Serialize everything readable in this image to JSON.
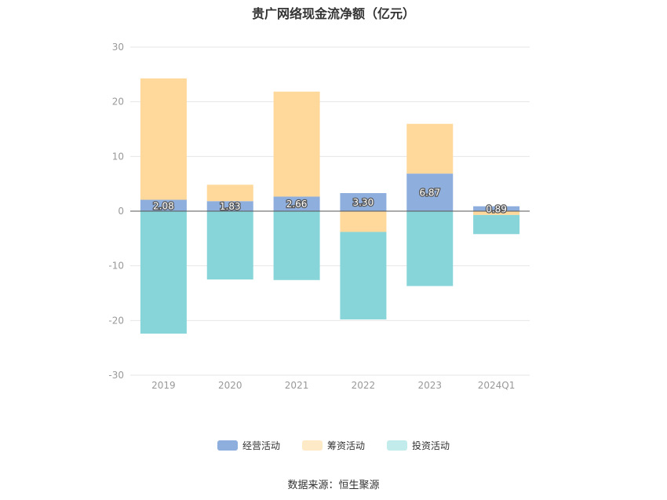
{
  "title": "贵广网络现金流净额（亿元）",
  "source": "数据来源：恒生聚源",
  "chart_data": {
    "type": "bar",
    "stacked": true,
    "title": "贵广网络现金流净额（亿元）",
    "xlabel": "",
    "ylabel": "",
    "categories": [
      "2019",
      "2020",
      "2021",
      "2022",
      "2023",
      "2024Q1"
    ],
    "ylim": [
      -30,
      30
    ],
    "yticks": [
      30,
      20,
      10,
      0,
      -10,
      -20,
      -30
    ],
    "grid": true,
    "legend_position": "bottom",
    "series": [
      {
        "name": "经营活动",
        "color": "#8eaedd",
        "values": [
          2.08,
          1.83,
          2.66,
          3.3,
          6.87,
          0.89
        ],
        "labels": [
          "2.08",
          "1.83",
          "2.66",
          "3.30",
          "6.87",
          "0.89"
        ]
      },
      {
        "name": "筹资活动",
        "color": "#ffd89b",
        "values": [
          22.2,
          3.0,
          19.2,
          -3.8,
          9.1,
          -0.7
        ]
      },
      {
        "name": "投资活动",
        "color": "#87d5d9",
        "values": [
          -22.4,
          -12.5,
          -12.6,
          -16.0,
          -13.7,
          -3.5
        ]
      }
    ],
    "legend_colors": [
      "#8eaedd",
      "#ffeac8",
      "#c2ecec"
    ]
  }
}
